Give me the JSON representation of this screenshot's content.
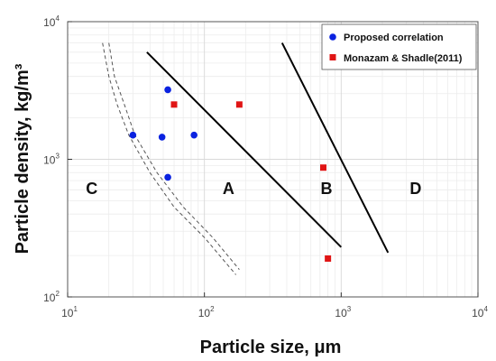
{
  "chart_data": {
    "type": "scatter",
    "xscale": "log",
    "yscale": "log",
    "xlim": [
      10,
      10000
    ],
    "ylim": [
      100,
      10000
    ],
    "grid": true,
    "xlabel": "Particle size, μm",
    "ylabel": "Particle density, kg/m³",
    "xticks": [
      {
        "value": 10,
        "base": "10",
        "exp": "1"
      },
      {
        "value": 100,
        "base": "10",
        "exp": "2"
      },
      {
        "value": 1000,
        "base": "10",
        "exp": "3"
      },
      {
        "value": 10000,
        "base": "10",
        "exp": "4"
      }
    ],
    "yticks": [
      {
        "value": 100,
        "base": "10",
        "exp": "2"
      },
      {
        "value": 1000,
        "base": "10",
        "exp": "3"
      },
      {
        "value": 10000,
        "base": "10",
        "exp": "4"
      }
    ],
    "legend_position": "top-right",
    "series": [
      {
        "name": "Proposed correlation",
        "marker": "circle",
        "color": "#0a22e0",
        "points": [
          {
            "x": 54,
            "y": 3200
          },
          {
            "x": 30,
            "y": 1500
          },
          {
            "x": 49,
            "y": 1450
          },
          {
            "x": 84,
            "y": 1500
          },
          {
            "x": 54,
            "y": 740
          }
        ]
      },
      {
        "name": "Monazam & Shadle(2011)",
        "marker": "square",
        "color": "#e01515",
        "points": [
          {
            "x": 60,
            "y": 2500
          },
          {
            "x": 180,
            "y": 2500
          },
          {
            "x": 740,
            "y": 870
          },
          {
            "x": 800,
            "y": 190
          }
        ]
      }
    ],
    "boundaries": [
      {
        "style": "solid",
        "points": [
          [
            38,
            6000
          ],
          [
            1000,
            230
          ]
        ]
      },
      {
        "style": "solid",
        "points": [
          [
            370,
            7000
          ],
          [
            2200,
            210
          ]
        ]
      },
      {
        "style": "dashed",
        "points": [
          [
            18,
            7000
          ],
          [
            20,
            4000
          ],
          [
            23,
            2500
          ],
          [
            28,
            1500
          ],
          [
            40,
            800
          ],
          [
            60,
            450
          ],
          [
            100,
            270
          ],
          [
            170,
            145
          ]
        ]
      },
      {
        "style": "dashed",
        "points": [
          [
            20,
            7000
          ],
          [
            22,
            4000
          ],
          [
            26,
            2500
          ],
          [
            31,
            1500
          ],
          [
            45,
            800
          ],
          [
            70,
            450
          ],
          [
            115,
            270
          ],
          [
            180,
            158
          ]
        ]
      }
    ],
    "region_labels": [
      {
        "text": "C",
        "x": 15,
        "y": 600
      },
      {
        "text": "A",
        "x": 150,
        "y": 600
      },
      {
        "text": "B",
        "x": 780,
        "y": 600
      },
      {
        "text": "D",
        "x": 3500,
        "y": 600
      }
    ]
  }
}
